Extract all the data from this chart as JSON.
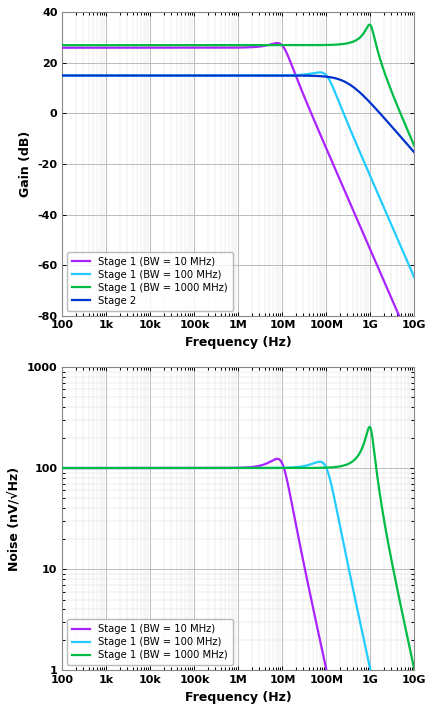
{
  "top": {
    "ylabel": "Gain (dB)",
    "xlabel": "Frequency (Hz)",
    "ylim": [
      -80,
      40
    ],
    "yticks": [
      -80,
      -60,
      -40,
      -20,
      0,
      20,
      40
    ],
    "legend": [
      {
        "label": "Stage 1 (BW = 10 MHz)",
        "color": "#AA22FF"
      },
      {
        "label": "Stage 1 (BW = 100 MHz)",
        "color": "#22CCFF"
      },
      {
        "label": "Stage 1 (BW = 1000 MHz)",
        "color": "#00BB44"
      },
      {
        "label": "Stage 2",
        "color": "#0033CC"
      }
    ]
  },
  "bottom": {
    "ylabel": "Noise (nV/√Hz)",
    "xlabel": "Frequency (Hz)",
    "legend": [
      {
        "label": "Stage 1 (BW = 10 MHz)",
        "color": "#AA22FF"
      },
      {
        "label": "Stage 1 (BW = 100 MHz)",
        "color": "#22CCFF"
      },
      {
        "label": "Stage 1 (BW = 1000 MHz)",
        "color": "#00BB44"
      }
    ]
  },
  "xtick_vals": [
    100,
    1000,
    10000,
    100000,
    1000000,
    10000000,
    100000000,
    1000000000,
    10000000000
  ],
  "xtick_labels": [
    "100",
    "1k",
    "10k",
    "100k",
    "1M",
    "10M",
    "100M",
    "1G",
    "10G"
  ],
  "bg_color": "#ffffff",
  "grid_major_color": "#bbbbbb",
  "grid_minor_color": "#dddddd"
}
